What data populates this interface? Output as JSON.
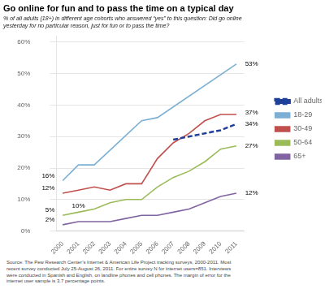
{
  "chart_data": {
    "type": "line",
    "title": "Go online for fun and to pass the time on a typical day",
    "subtitle": "% of all adults (18+) in different age cohorts who answered “yes” to this question: Did go online\nyesterday for no particular reason, just for fun or to pass the time?",
    "source": "Source: The Pew Research Center’s Internet & American Life Project tracking surveys, 2000-2011. Most\nrecent survey conducted July 25-August 26, 2011. For entire survey N for internet users=851. Interviews\nwere conducted in Spanish and English, on landline phones and cell phones. The margin of error for the\ninternet user sample is 3.7 percentage points.",
    "series": [
      {
        "name": "All adults",
        "color": "#1f4099",
        "line_style": "dashed",
        "x": [
          2007,
          2008,
          2010,
          2011
        ],
        "values": [
          29,
          30,
          32,
          34
        ]
      },
      {
        "name": "18-29",
        "color": "#7bafd4",
        "line_style": "solid",
        "x": [
          2000,
          2001,
          2002,
          2005,
          2006,
          2011
        ],
        "values": [
          16,
          21,
          21,
          35,
          36,
          53
        ]
      },
      {
        "name": "30-49",
        "color": "#c0504d",
        "line_style": "solid",
        "x": [
          2000,
          2001,
          2002,
          2003,
          2004,
          2005,
          2006,
          2007,
          2008,
          2009,
          2010,
          2011
        ],
        "values": [
          12,
          13,
          14,
          13,
          15,
          15,
          23,
          28,
          31,
          35,
          37,
          37
        ]
      },
      {
        "name": "50-64",
        "color": "#9bbb59",
        "line_style": "solid",
        "x": [
          2000,
          2001,
          2002,
          2003,
          2004,
          2005,
          2006,
          2007,
          2008,
          2009,
          2010,
          2011
        ],
        "values": [
          5,
          6,
          7,
          9,
          10,
          10,
          14,
          17,
          19,
          22,
          26,
          27
        ]
      },
      {
        "name": "65+",
        "color": "#8064a2",
        "line_style": "solid",
        "x": [
          2000,
          2001,
          2002,
          2003,
          2004,
          2005,
          2006,
          2007,
          2008,
          2009,
          2010,
          2011
        ],
        "values": [
          2,
          3,
          3,
          3,
          4,
          5,
          5,
          6,
          7,
          9,
          11,
          12
        ]
      }
    ],
    "xlim": [
      1999.6,
      2011.5
    ],
    "xticks": [
      2000,
      2001,
      2002,
      2003,
      2004,
      2005,
      2006,
      2007,
      2008,
      2009,
      2010,
      2011
    ],
    "ylim": [
      0,
      62
    ],
    "yticks": [
      {
        "value": 0,
        "label": "0%"
      },
      {
        "value": 10,
        "label": "10%"
      },
      {
        "value": 20,
        "label": "20%"
      },
      {
        "value": 30,
        "label": "30%"
      },
      {
        "value": 40,
        "label": "40%"
      },
      {
        "value": 50,
        "label": "50%"
      },
      {
        "value": 60,
        "label": "60%"
      }
    ],
    "grid": "y",
    "legend": "right",
    "annotations": [
      {
        "text": "53%",
        "x": 2011.55,
        "y": 53
      },
      {
        "text": "37%",
        "x": 2011.55,
        "y": 37.5
      },
      {
        "text": "34%",
        "x": 2011.55,
        "y": 34
      },
      {
        "text": "27%",
        "x": 2011.55,
        "y": 27
      },
      {
        "text": "12%",
        "x": 2011.55,
        "y": 12
      },
      {
        "text": "16%",
        "x": 1999.5,
        "y": 16.5
      },
      {
        "text": "12%",
        "x": 1999.5,
        "y": 12.5
      },
      {
        "text": "5%",
        "x": 1999.5,
        "y": 5.5
      },
      {
        "text": "2%",
        "x": 1999.5,
        "y": 2.5
      },
      {
        "text": "10%",
        "x": 2001.0,
        "y": 9
      }
    ]
  }
}
